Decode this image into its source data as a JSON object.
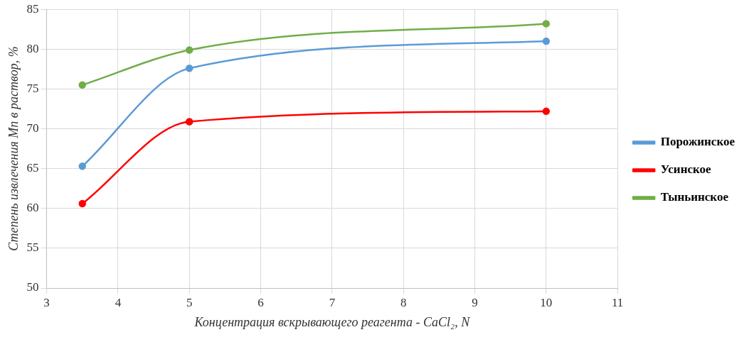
{
  "chart_data": {
    "type": "line",
    "xlabel": "Концентрация вскрывающего реагента - CaCl₂, N",
    "ylabel": "Степень извлечения Mn в раствор, %",
    "x": [
      3.5,
      5,
      10
    ],
    "series": [
      {
        "name": "Порожинское",
        "color": "#5b9bd5",
        "values": [
          65.3,
          77.6,
          81.0
        ]
      },
      {
        "name": "Усинское",
        "color": "#ff0000",
        "values": [
          60.6,
          70.9,
          72.2
        ]
      },
      {
        "name": "Тыньинское",
        "color": "#70ad47",
        "values": [
          75.5,
          79.9,
          83.2
        ]
      }
    ],
    "xlim": [
      3,
      11
    ],
    "xticks": [
      3,
      4,
      5,
      6,
      7,
      8,
      9,
      10,
      11
    ],
    "ylim": [
      50,
      85
    ],
    "yticks": [
      50,
      55,
      60,
      65,
      70,
      75,
      80,
      85
    ],
    "grid": true,
    "legend": "right",
    "marker": "circle",
    "line_style": "solid"
  }
}
